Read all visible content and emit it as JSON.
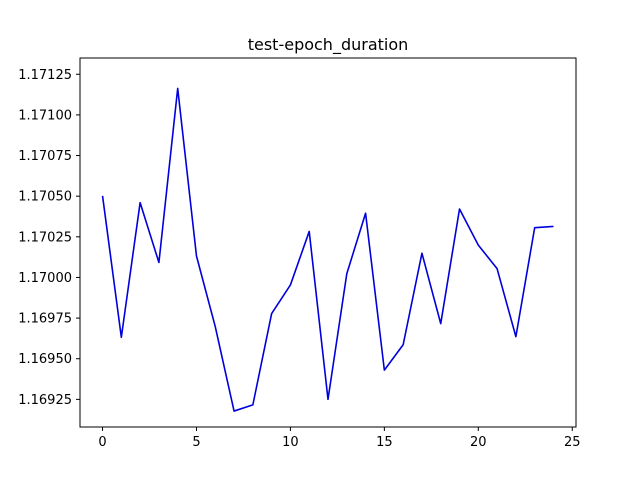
{
  "chart_data": {
    "type": "line",
    "title": "test-epoch_duration",
    "xlabel": "",
    "ylabel": "",
    "xlim": [
      -1.2,
      25.2
    ],
    "ylim": [
      1.16908,
      1.17135
    ],
    "x_ticks": [
      0,
      5,
      10,
      15,
      20,
      25
    ],
    "y_ticks": [
      1.16925,
      1.1695,
      1.16975,
      1.17,
      1.17025,
      1.1705,
      1.17075,
      1.171,
      1.17125
    ],
    "y_tick_labels": [
      "1.16925",
      "1.16950",
      "1.16975",
      "1.17000",
      "1.17025",
      "1.17050",
      "1.17075",
      "1.17100",
      "1.17125"
    ],
    "grid": false,
    "series": [
      {
        "color": "#0000dd",
        "x": [
          0,
          1,
          2,
          3,
          4,
          5,
          6,
          7,
          8,
          9,
          10,
          11,
          12,
          13,
          14,
          15,
          16,
          17,
          18,
          19,
          20,
          21,
          22,
          23,
          24
        ],
        "y": [
          1.170502,
          1.169632,
          1.17046,
          1.170092,
          1.171163,
          1.170132,
          1.169697,
          1.169178,
          1.169216,
          1.169778,
          1.169954,
          1.170283,
          1.16925,
          1.170023,
          1.170395,
          1.16943,
          1.169586,
          1.170149,
          1.169716,
          1.170421,
          1.170199,
          1.170054,
          1.169636,
          1.170306,
          1.170314
        ]
      }
    ]
  }
}
